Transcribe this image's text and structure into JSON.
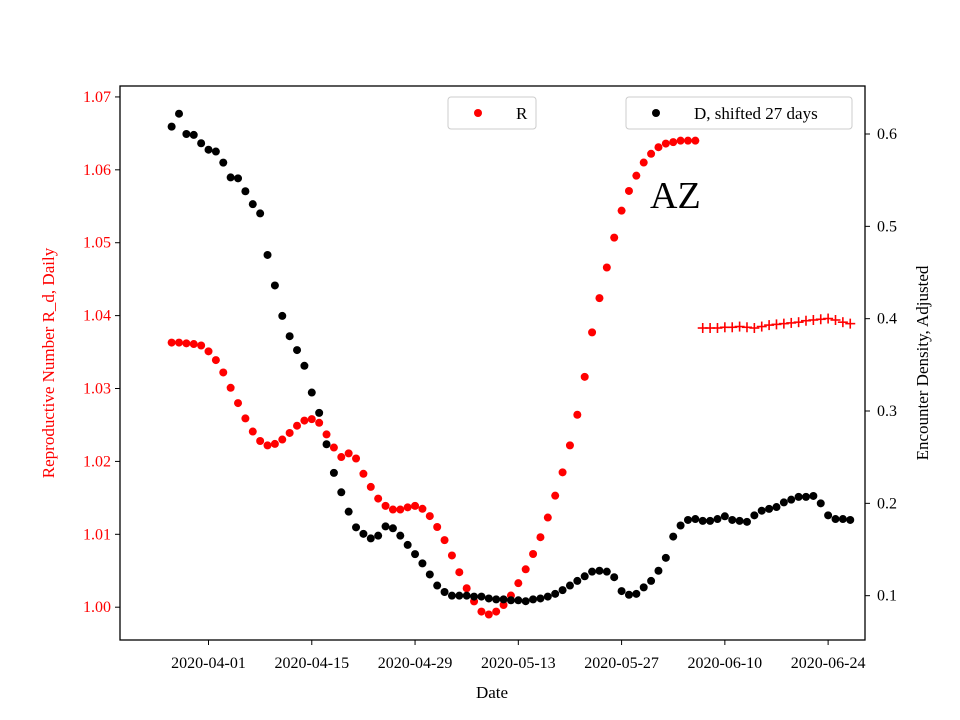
{
  "chart_data": {
    "type": "scatter",
    "title": "",
    "annotation": "AZ",
    "xlabel": "Date",
    "ylabel_left": "Reproductive Number R_d, Daily",
    "ylabel_right": "Encounter Density, Adjusted",
    "x_tick_labels": [
      "2020-04-01",
      "2020-04-15",
      "2020-04-29",
      "2020-05-13",
      "2020-05-27",
      "2020-06-10",
      "2020-06-24"
    ],
    "xlim": [
      "2020-03-20",
      "2020-06-29"
    ],
    "ylim_left": [
      0.9955,
      1.0715
    ],
    "ylim_right": [
      0.052,
      0.652
    ],
    "y_ticks_left": [
      1.0,
      1.01,
      1.02,
      1.03,
      1.04,
      1.05,
      1.06,
      1.07
    ],
    "y_tick_labels_left": [
      "1.00",
      "1.01",
      "1.02",
      "1.03",
      "1.04",
      "1.05",
      "1.06",
      "1.07"
    ],
    "y_ticks_right": [
      0.1,
      0.2,
      0.3,
      0.4,
      0.5,
      0.6
    ],
    "y_tick_labels_right": [
      "0.1",
      "0.2",
      "0.3",
      "0.4",
      "0.5",
      "0.6"
    ],
    "grid": false,
    "legend_left": {
      "placement": "top-center",
      "label": "R"
    },
    "legend_right": {
      "placement": "top-right",
      "label": "D, shifted 27 days"
    },
    "colors": {
      "R": "#ff0000",
      "D": "#000000",
      "left_axis": "#ff0000"
    },
    "series": [
      {
        "name": "R",
        "axis": "left",
        "marker": "dot",
        "x": [
          "2020-03-27",
          "2020-03-28",
          "2020-03-29",
          "2020-03-30",
          "2020-03-31",
          "2020-04-01",
          "2020-04-02",
          "2020-04-03",
          "2020-04-04",
          "2020-04-05",
          "2020-04-06",
          "2020-04-07",
          "2020-04-08",
          "2020-04-09",
          "2020-04-10",
          "2020-04-11",
          "2020-04-12",
          "2020-04-13",
          "2020-04-14",
          "2020-04-15",
          "2020-04-16",
          "2020-04-17",
          "2020-04-18",
          "2020-04-19",
          "2020-04-20",
          "2020-04-21",
          "2020-04-22",
          "2020-04-23",
          "2020-04-24",
          "2020-04-25",
          "2020-04-26",
          "2020-04-27",
          "2020-04-28",
          "2020-04-29",
          "2020-04-30",
          "2020-05-01",
          "2020-05-02",
          "2020-05-03",
          "2020-05-04",
          "2020-05-05",
          "2020-05-06",
          "2020-05-07",
          "2020-05-08",
          "2020-05-09",
          "2020-05-10",
          "2020-05-11",
          "2020-05-12",
          "2020-05-13",
          "2020-05-14",
          "2020-05-15",
          "2020-05-16",
          "2020-05-17",
          "2020-05-18",
          "2020-05-19",
          "2020-05-20",
          "2020-05-21",
          "2020-05-22",
          "2020-05-23",
          "2020-05-24",
          "2020-05-25",
          "2020-05-26",
          "2020-05-27",
          "2020-05-28",
          "2020-05-29",
          "2020-05-30",
          "2020-05-31",
          "2020-06-01",
          "2020-06-02",
          "2020-06-03",
          "2020-06-04",
          "2020-06-05",
          "2020-06-06"
        ],
        "y": [
          1.0363,
          1.0363,
          1.0362,
          1.0361,
          1.0359,
          1.0351,
          1.0339,
          1.0322,
          1.0301,
          1.028,
          1.0259,
          1.0241,
          1.0228,
          1.0222,
          1.0224,
          1.023,
          1.0239,
          1.0249,
          1.0256,
          1.0258,
          1.0253,
          1.0237,
          1.0219,
          1.0206,
          1.0211,
          1.0204,
          1.0183,
          1.0165,
          1.0149,
          1.0139,
          1.0134,
          1.0134,
          1.0137,
          1.0139,
          1.0135,
          1.0125,
          1.011,
          1.0092,
          1.0071,
          1.0048,
          1.0026,
          1.0008,
          0.9994,
          0.999,
          0.9994,
          1.0003,
          1.0016,
          1.0033,
          1.0052,
          1.0073,
          1.0096,
          1.0123,
          1.0153,
          1.0185,
          1.0222,
          1.0264,
          1.0316,
          1.0377,
          1.0424,
          1.0466,
          1.0507,
          1.0544,
          1.0571,
          1.0592,
          1.061,
          1.0622,
          1.0631,
          1.0636,
          1.0638,
          1.064,
          1.064,
          1.064
        ]
      },
      {
        "name": "D, shifted 27 days",
        "axis": "right",
        "marker": "dot",
        "x": [
          "2020-03-27",
          "2020-03-28",
          "2020-03-29",
          "2020-03-30",
          "2020-03-31",
          "2020-04-01",
          "2020-04-02",
          "2020-04-03",
          "2020-04-04",
          "2020-04-05",
          "2020-04-06",
          "2020-04-07",
          "2020-04-08",
          "2020-04-09",
          "2020-04-10",
          "2020-04-11",
          "2020-04-12",
          "2020-04-13",
          "2020-04-14",
          "2020-04-15",
          "2020-04-16",
          "2020-04-17",
          "2020-04-18",
          "2020-04-19",
          "2020-04-20",
          "2020-04-21",
          "2020-04-22",
          "2020-04-23",
          "2020-04-24",
          "2020-04-25",
          "2020-04-26",
          "2020-04-27",
          "2020-04-28",
          "2020-04-29",
          "2020-04-30",
          "2020-05-01",
          "2020-05-02",
          "2020-05-03",
          "2020-05-04",
          "2020-05-05",
          "2020-05-06",
          "2020-05-07",
          "2020-05-08",
          "2020-05-09",
          "2020-05-10",
          "2020-05-11",
          "2020-05-12",
          "2020-05-13",
          "2020-05-14",
          "2020-05-15",
          "2020-05-16",
          "2020-05-17",
          "2020-05-18",
          "2020-05-19",
          "2020-05-20",
          "2020-05-21",
          "2020-05-22",
          "2020-05-23",
          "2020-05-24",
          "2020-05-25",
          "2020-05-26",
          "2020-05-27",
          "2020-05-28",
          "2020-05-29",
          "2020-05-30",
          "2020-05-31",
          "2020-06-01",
          "2020-06-02",
          "2020-06-03",
          "2020-06-04",
          "2020-06-05",
          "2020-06-06",
          "2020-06-07",
          "2020-06-08",
          "2020-06-09",
          "2020-06-10",
          "2020-06-11",
          "2020-06-12",
          "2020-06-13",
          "2020-06-14",
          "2020-06-15",
          "2020-06-16",
          "2020-06-17",
          "2020-06-18",
          "2020-06-19",
          "2020-06-20",
          "2020-06-21",
          "2020-06-22",
          "2020-06-23",
          "2020-06-24",
          "2020-06-25",
          "2020-06-26",
          "2020-06-27"
        ],
        "y": [
          0.608,
          0.622,
          0.6,
          0.599,
          0.59,
          0.583,
          0.581,
          0.569,
          0.553,
          0.552,
          0.538,
          0.524,
          0.514,
          0.469,
          0.436,
          0.403,
          0.381,
          0.366,
          0.349,
          0.32,
          0.298,
          0.264,
          0.233,
          0.212,
          0.191,
          0.174,
          0.167,
          0.162,
          0.165,
          0.175,
          0.173,
          0.165,
          0.155,
          0.145,
          0.135,
          0.123,
          0.111,
          0.104,
          0.1,
          0.1,
          0.1,
          0.099,
          0.099,
          0.097,
          0.096,
          0.096,
          0.095,
          0.095,
          0.094,
          0.096,
          0.097,
          0.099,
          0.102,
          0.106,
          0.111,
          0.116,
          0.121,
          0.126,
          0.127,
          0.126,
          0.12,
          0.105,
          0.101,
          0.102,
          0.109,
          0.116,
          0.127,
          0.141,
          0.164,
          0.176,
          0.182,
          0.183,
          0.181,
          0.181,
          0.183,
          0.186,
          0.182,
          0.181,
          0.18,
          0.187,
          0.192,
          0.194,
          0.196,
          0.201,
          0.204,
          0.207,
          0.207,
          0.208,
          0.2,
          0.187,
          0.183,
          0.183,
          0.182
        ]
      },
      {
        "name": "",
        "axis": "left",
        "marker": "plus",
        "x": [
          "2020-06-07",
          "2020-06-08",
          "2020-06-09",
          "2020-06-10",
          "2020-06-11",
          "2020-06-12",
          "2020-06-13",
          "2020-06-14",
          "2020-06-15",
          "2020-06-16",
          "2020-06-17",
          "2020-06-18",
          "2020-06-19",
          "2020-06-20",
          "2020-06-21",
          "2020-06-22",
          "2020-06-23",
          "2020-06-24",
          "2020-06-25",
          "2020-06-26",
          "2020-06-27"
        ],
        "y": [
          1.0383,
          1.0383,
          1.0383,
          1.0384,
          1.0384,
          1.0385,
          1.0384,
          1.0383,
          1.0385,
          1.0387,
          1.0388,
          1.0389,
          1.039,
          1.0391,
          1.0393,
          1.0394,
          1.0395,
          1.0396,
          1.0394,
          1.0391,
          1.0389
        ]
      }
    ]
  }
}
